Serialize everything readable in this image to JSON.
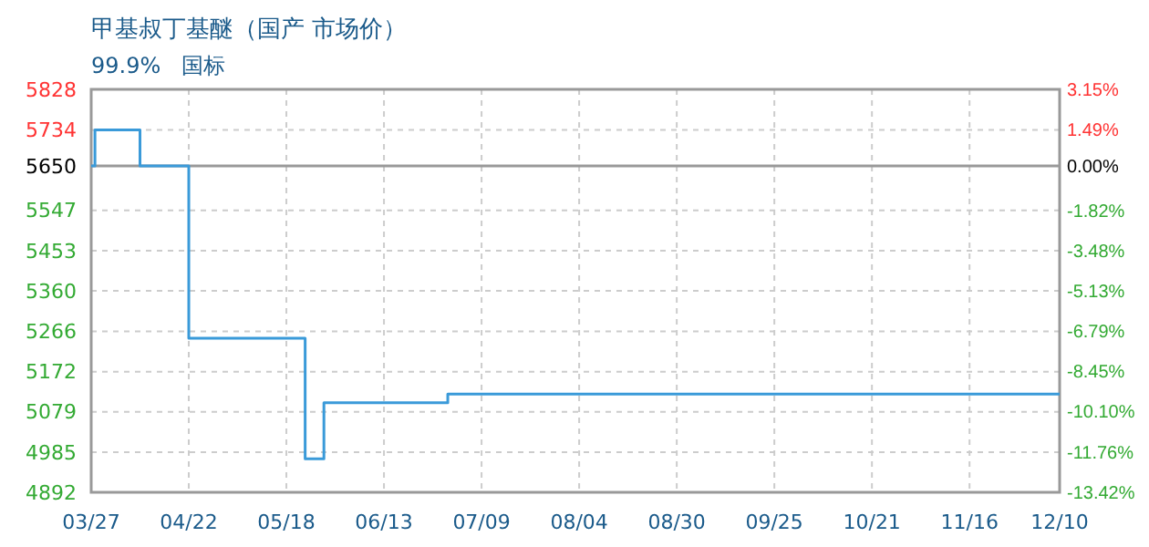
{
  "chart_data": {
    "type": "step",
    "title": "甲基叔丁基醚（国产 市场价）",
    "subtitle": "99.9%   国标",
    "x": [
      "--03-27",
      "--03-28",
      "--04-09",
      "--04-22",
      "--05-23",
      "--05-28",
      "--06-30",
      "--12-10"
    ],
    "series": [
      {
        "color": "#3a9ad9",
        "values": [
          5650,
          5734,
          5650,
          5250,
          4970,
          5100,
          5120,
          5120
        ]
      }
    ],
    "xlim": [
      "--03-27",
      "--12-10"
    ],
    "xticks": [
      {
        "value": "--03-27",
        "label": "03/27"
      },
      {
        "value": "--04-22",
        "label": "04/22"
      },
      {
        "value": "--05-18",
        "label": "05/18"
      },
      {
        "value": "--06-13",
        "label": "06/13"
      },
      {
        "value": "--07-09",
        "label": "07/09"
      },
      {
        "value": "--08-04",
        "label": "08/04"
      },
      {
        "value": "--08-30",
        "label": "08/30"
      },
      {
        "value": "--09-25",
        "label": "09/25"
      },
      {
        "value": "--10-21",
        "label": "10/21"
      },
      {
        "value": "--11-16",
        "label": "11/16"
      },
      {
        "value": "--12-10",
        "label": "12/10"
      }
    ],
    "ylim": [
      4892,
      5828
    ],
    "yticks": [
      4892,
      4985,
      5079,
      5172,
      5266,
      5360,
      5453,
      5547,
      5650,
      5734,
      5828
    ],
    "y2lim": [
      -13.42,
      3.15
    ],
    "y2ticks": [
      {
        "value": -13.42,
        "label": "-13.42%"
      },
      {
        "value": -11.76,
        "label": "-11.76%"
      },
      {
        "value": -10.1,
        "label": "-10.10%"
      },
      {
        "value": -8.45,
        "label": "-8.45%"
      },
      {
        "value": -6.79,
        "label": "-6.79%"
      },
      {
        "value": -5.13,
        "label": "-5.13%"
      },
      {
        "value": -3.48,
        "label": "-3.48%"
      },
      {
        "value": -1.82,
        "label": "-1.82%"
      },
      {
        "value": 0,
        "label": "0.00%"
      },
      {
        "value": 1.49,
        "label": "1.49%"
      },
      {
        "value": 3.15,
        "label": "3.15%"
      }
    ],
    "ref_lines": [
      {
        "axis": "y",
        "value": 5650,
        "color": "#999999"
      }
    ],
    "grid": true
  }
}
